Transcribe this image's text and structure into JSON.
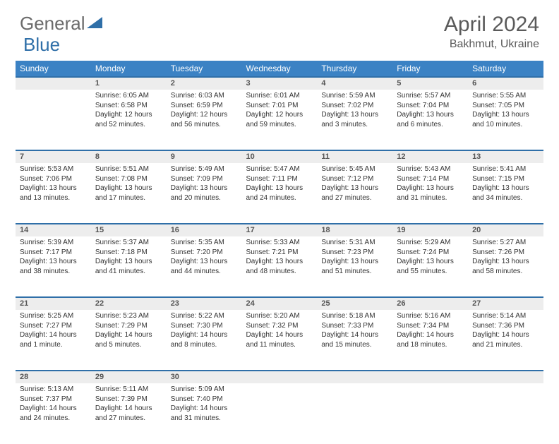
{
  "logo": {
    "text1": "General",
    "text2": "Blue",
    "triangle_color": "#2f6fa8"
  },
  "title": "April 2024",
  "location": "Bakhmut, Ukraine",
  "header_bg": "#3b82c4",
  "rule_color": "#2f6fa8",
  "daynum_bg": "#ededed",
  "days": [
    "Sunday",
    "Monday",
    "Tuesday",
    "Wednesday",
    "Thursday",
    "Friday",
    "Saturday"
  ],
  "weeks": [
    [
      null,
      {
        "n": "1",
        "sr": "6:05 AM",
        "ss": "6:58 PM",
        "dl": "12 hours and 52 minutes."
      },
      {
        "n": "2",
        "sr": "6:03 AM",
        "ss": "6:59 PM",
        "dl": "12 hours and 56 minutes."
      },
      {
        "n": "3",
        "sr": "6:01 AM",
        "ss": "7:01 PM",
        "dl": "12 hours and 59 minutes."
      },
      {
        "n": "4",
        "sr": "5:59 AM",
        "ss": "7:02 PM",
        "dl": "13 hours and 3 minutes."
      },
      {
        "n": "5",
        "sr": "5:57 AM",
        "ss": "7:04 PM",
        "dl": "13 hours and 6 minutes."
      },
      {
        "n": "6",
        "sr": "5:55 AM",
        "ss": "7:05 PM",
        "dl": "13 hours and 10 minutes."
      }
    ],
    [
      {
        "n": "7",
        "sr": "5:53 AM",
        "ss": "7:06 PM",
        "dl": "13 hours and 13 minutes."
      },
      {
        "n": "8",
        "sr": "5:51 AM",
        "ss": "7:08 PM",
        "dl": "13 hours and 17 minutes."
      },
      {
        "n": "9",
        "sr": "5:49 AM",
        "ss": "7:09 PM",
        "dl": "13 hours and 20 minutes."
      },
      {
        "n": "10",
        "sr": "5:47 AM",
        "ss": "7:11 PM",
        "dl": "13 hours and 24 minutes."
      },
      {
        "n": "11",
        "sr": "5:45 AM",
        "ss": "7:12 PM",
        "dl": "13 hours and 27 minutes."
      },
      {
        "n": "12",
        "sr": "5:43 AM",
        "ss": "7:14 PM",
        "dl": "13 hours and 31 minutes."
      },
      {
        "n": "13",
        "sr": "5:41 AM",
        "ss": "7:15 PM",
        "dl": "13 hours and 34 minutes."
      }
    ],
    [
      {
        "n": "14",
        "sr": "5:39 AM",
        "ss": "7:17 PM",
        "dl": "13 hours and 38 minutes."
      },
      {
        "n": "15",
        "sr": "5:37 AM",
        "ss": "7:18 PM",
        "dl": "13 hours and 41 minutes."
      },
      {
        "n": "16",
        "sr": "5:35 AM",
        "ss": "7:20 PM",
        "dl": "13 hours and 44 minutes."
      },
      {
        "n": "17",
        "sr": "5:33 AM",
        "ss": "7:21 PM",
        "dl": "13 hours and 48 minutes."
      },
      {
        "n": "18",
        "sr": "5:31 AM",
        "ss": "7:23 PM",
        "dl": "13 hours and 51 minutes."
      },
      {
        "n": "19",
        "sr": "5:29 AM",
        "ss": "7:24 PM",
        "dl": "13 hours and 55 minutes."
      },
      {
        "n": "20",
        "sr": "5:27 AM",
        "ss": "7:26 PM",
        "dl": "13 hours and 58 minutes."
      }
    ],
    [
      {
        "n": "21",
        "sr": "5:25 AM",
        "ss": "7:27 PM",
        "dl": "14 hours and 1 minute."
      },
      {
        "n": "22",
        "sr": "5:23 AM",
        "ss": "7:29 PM",
        "dl": "14 hours and 5 minutes."
      },
      {
        "n": "23",
        "sr": "5:22 AM",
        "ss": "7:30 PM",
        "dl": "14 hours and 8 minutes."
      },
      {
        "n": "24",
        "sr": "5:20 AM",
        "ss": "7:32 PM",
        "dl": "14 hours and 11 minutes."
      },
      {
        "n": "25",
        "sr": "5:18 AM",
        "ss": "7:33 PM",
        "dl": "14 hours and 15 minutes."
      },
      {
        "n": "26",
        "sr": "5:16 AM",
        "ss": "7:34 PM",
        "dl": "14 hours and 18 minutes."
      },
      {
        "n": "27",
        "sr": "5:14 AM",
        "ss": "7:36 PM",
        "dl": "14 hours and 21 minutes."
      }
    ],
    [
      {
        "n": "28",
        "sr": "5:13 AM",
        "ss": "7:37 PM",
        "dl": "14 hours and 24 minutes."
      },
      {
        "n": "29",
        "sr": "5:11 AM",
        "ss": "7:39 PM",
        "dl": "14 hours and 27 minutes."
      },
      {
        "n": "30",
        "sr": "5:09 AM",
        "ss": "7:40 PM",
        "dl": "14 hours and 31 minutes."
      },
      null,
      null,
      null,
      null
    ]
  ],
  "labels": {
    "sunrise": "Sunrise: ",
    "sunset": "Sunset: ",
    "daylight": "Daylight: "
  }
}
